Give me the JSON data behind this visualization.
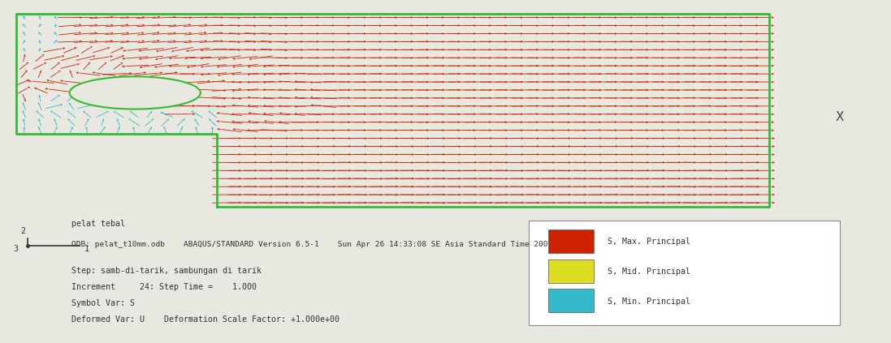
{
  "fig_bg": "#e8e8e0",
  "upper_bg": "#e8e8e0",
  "lower_bg": "#e8e8e0",
  "plate_color": "#33bb33",
  "arrow_red": "#cc2200",
  "arrow_cyan": "#33bbcc",
  "arrow_yellow": "#ddcc00",
  "arrow_orange": "#dd6600",
  "title_line1": "pelat tebal",
  "title_line2": "ODB: pelat_t10mm.odb    ABAQUS/STANDARD Version 6.5-1    Sun Apr 26 14:33:08 SE Asia Standard Time 2009",
  "step_text": "Step: samb-di-tarik, sambungan di tarik",
  "increment_text": "Increment     24: Step Time =    1.000",
  "symbol_text": "Symbol Var: S",
  "deformed_text": "Deformed Var: U    Deformation Scale Factor: +1.000e+00",
  "legend_items": [
    {
      "color": "#cc2200",
      "label": "S, Max. Principal"
    },
    {
      "color": "#dddd22",
      "label": "S, Mid. Principal"
    },
    {
      "color": "#33bbcc",
      "label": "S, Min. Principal"
    }
  ],
  "x_label": "X"
}
